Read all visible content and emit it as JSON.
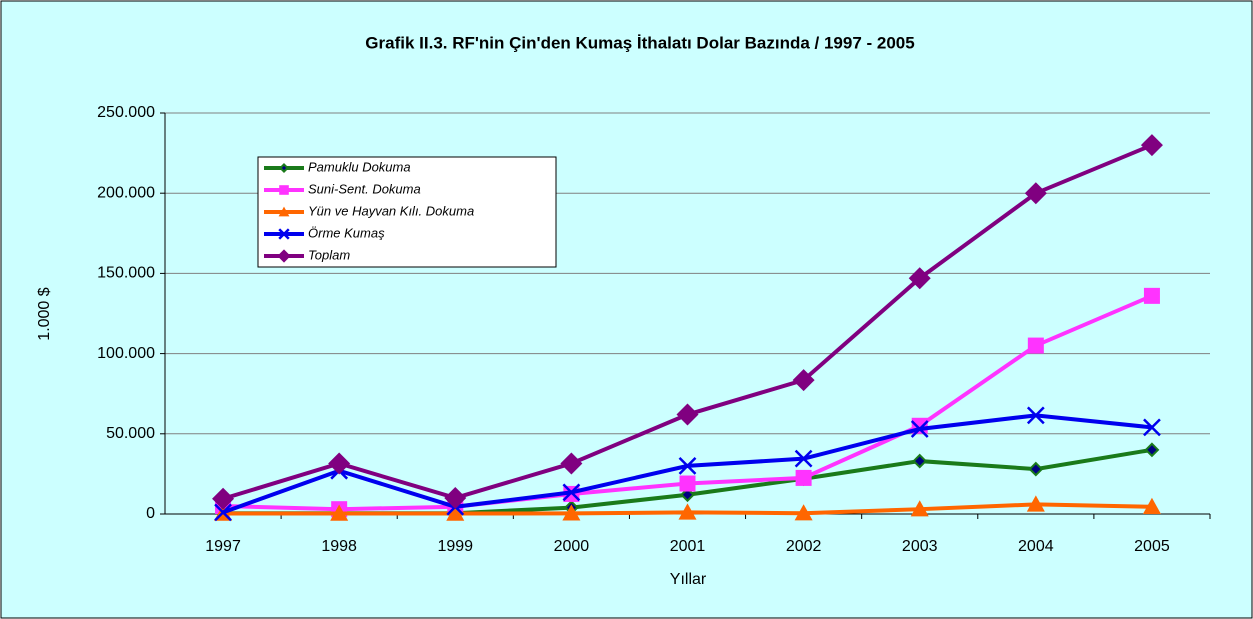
{
  "chart_data": {
    "type": "line",
    "title": "Grafik II.3.  RF'nin Çin'den Kumaş İthalatı Dolar Bazında / 1997 - 2005",
    "x_label": "Yıllar",
    "y_label": "1.000 $",
    "categories": [
      "1997",
      "1998",
      "1999",
      "2000",
      "2001",
      "2002",
      "2003",
      "2004",
      "2005"
    ],
    "series": [
      {
        "name": "Pamuklu Dokuma",
        "color": "#1a7a1a",
        "marker": "diamond",
        "values": [
          500,
          500,
          500,
          4000,
          12000,
          22000,
          33000,
          28000,
          40000
        ]
      },
      {
        "name": "Suni-Sent. Dokuma",
        "color": "#ff33ff",
        "marker": "square",
        "values": [
          5000,
          3000,
          4500,
          12500,
          19000,
          22500,
          55000,
          105000,
          136000
        ]
      },
      {
        "name": "Yün ve Hayvan Kılı. Dokuma",
        "color": "#ff6600",
        "marker": "triangle",
        "values": [
          300,
          300,
          300,
          400,
          1000,
          500,
          3000,
          6000,
          4500
        ]
      },
      {
        "name": "Örme Kumaş",
        "color": "#0000ee",
        "marker": "x",
        "values": [
          1000,
          27000,
          4500,
          13500,
          30000,
          34500,
          53000,
          61500,
          54000
        ]
      },
      {
        "name": "Toplam",
        "color": "#800080",
        "marker": "bigdiamond",
        "values": [
          9500,
          31500,
          10000,
          31500,
          62000,
          83500,
          147000,
          200000,
          230000
        ]
      }
    ],
    "ylim": [
      0,
      250000
    ],
    "yticks": [
      0,
      {
        "value": 50000,
        "label": "50.000"
      },
      {
        "value": 100000,
        "label": "100.000"
      },
      {
        "value": 150000,
        "label": "150.000"
      },
      {
        "value": 200000,
        "label": "200.000"
      },
      {
        "value": 250000,
        "label": "250.000"
      }
    ],
    "grid": true
  }
}
